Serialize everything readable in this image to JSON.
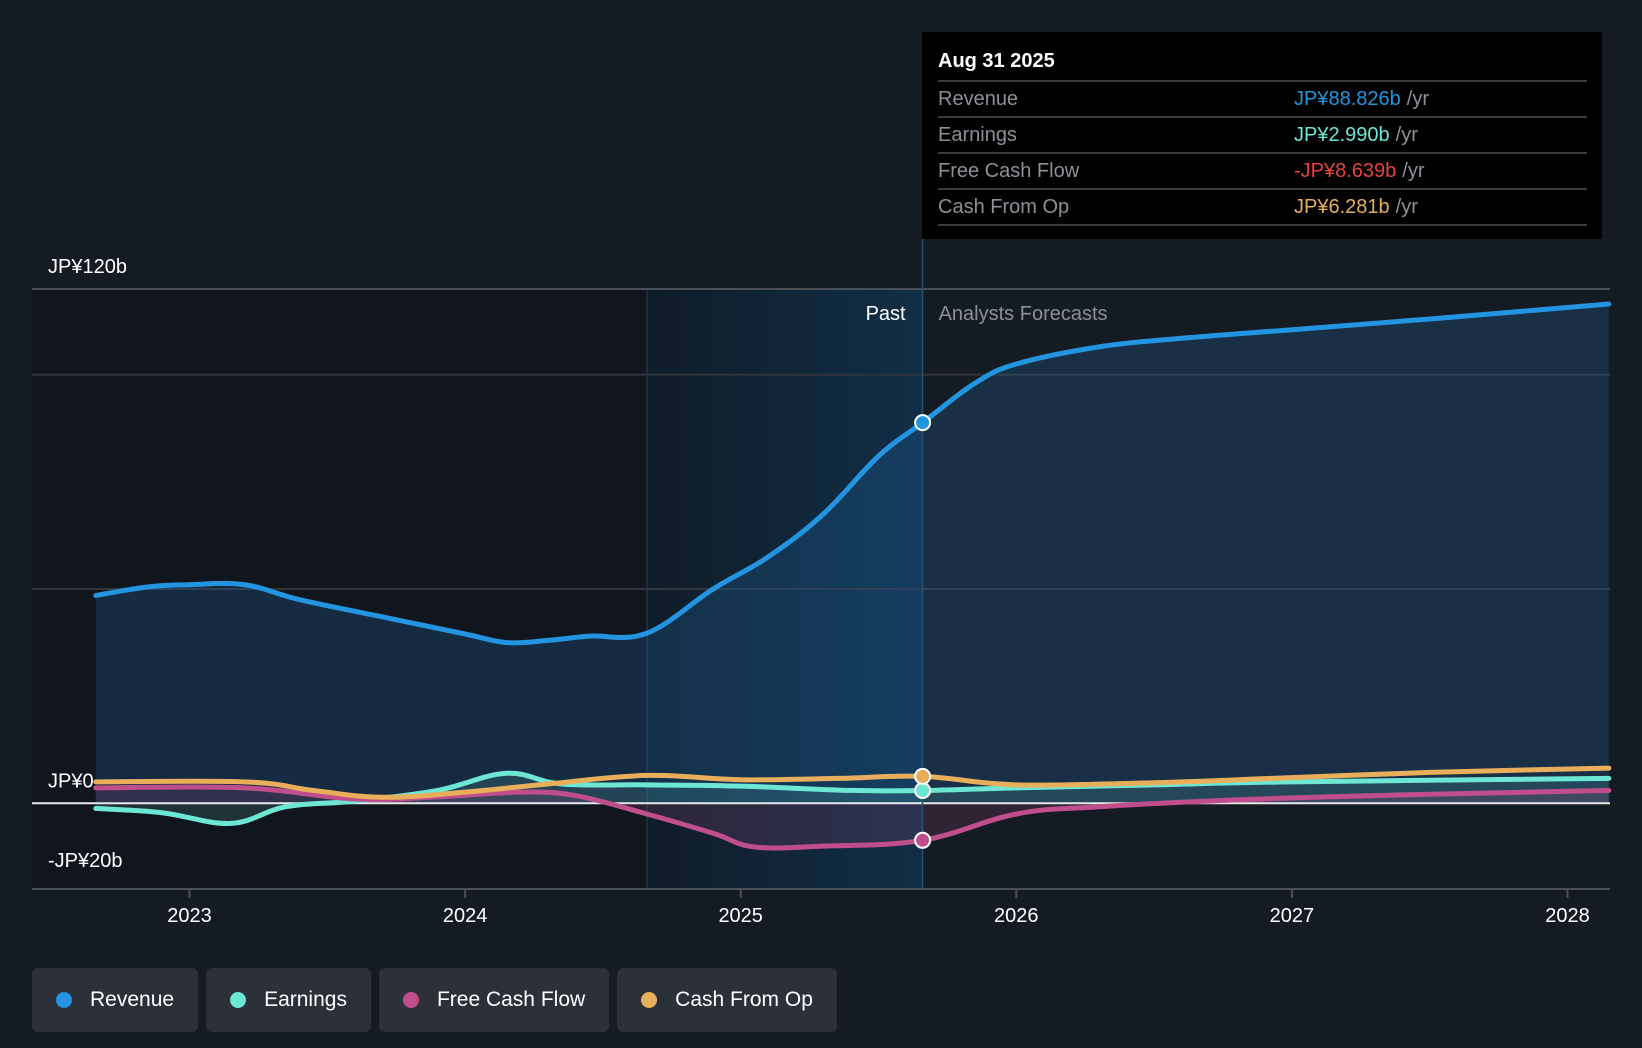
{
  "chart_data": {
    "type": "line",
    "title": "",
    "currency_prefix": "JP¥",
    "xlabel": "",
    "ylabel": "",
    "xlim": [
      2022.3,
      2028.15
    ],
    "ylim": [
      -20,
      120
    ],
    "y_ticks": [
      {
        "value": 120,
        "label": "JP¥120b",
        "show_label": true
      },
      {
        "value": 100,
        "label": "",
        "show_label": false
      },
      {
        "value": 50,
        "label": "",
        "show_label": false
      },
      {
        "value": 0,
        "label": "JP¥0",
        "show_label": true
      },
      {
        "value": -20,
        "label": "-JP¥20b",
        "show_label": true
      }
    ],
    "x_ticks": [
      {
        "value": 2023,
        "label": "2023"
      },
      {
        "value": 2024,
        "label": "2024"
      },
      {
        "value": 2025,
        "label": "2025"
      },
      {
        "value": 2026,
        "label": "2026"
      },
      {
        "value": 2027,
        "label": "2027"
      },
      {
        "value": 2028,
        "label": "2028"
      }
    ],
    "units": "JP¥ billions per year",
    "highlight_band": {
      "from": 2024.66,
      "to": 2025.66
    },
    "past_forecast_divider": 2025.66,
    "region_labels": {
      "past": "Past",
      "forecast": "Analysts Forecasts"
    },
    "series": [
      {
        "name": "Revenue",
        "color": "#2394e0",
        "fill": true,
        "points": [
          [
            2022.66,
            48.5
          ],
          [
            2022.85,
            50.5
          ],
          [
            2023.0,
            51.0
          ],
          [
            2023.2,
            51.0
          ],
          [
            2023.4,
            47.5
          ],
          [
            2023.7,
            43.5
          ],
          [
            2024.0,
            39.5
          ],
          [
            2024.15,
            37.5
          ],
          [
            2024.3,
            38.0
          ],
          [
            2024.45,
            39.0
          ],
          [
            2024.66,
            39.7
          ],
          [
            2024.9,
            50.0
          ],
          [
            2025.1,
            57.5
          ],
          [
            2025.3,
            67.5
          ],
          [
            2025.5,
            81.0
          ],
          [
            2025.66,
            88.826
          ],
          [
            2025.85,
            98.0
          ],
          [
            2026.0,
            102.5
          ],
          [
            2026.3,
            106.5
          ],
          [
            2026.6,
            108.5
          ],
          [
            2027.0,
            110.5
          ],
          [
            2027.5,
            113.0
          ],
          [
            2028.15,
            116.5
          ]
        ]
      },
      {
        "name": "Earnings",
        "color": "#6ee6d4",
        "fill": true,
        "points": [
          [
            2022.66,
            -1.2
          ],
          [
            2022.9,
            -2.2
          ],
          [
            2023.15,
            -4.7
          ],
          [
            2023.35,
            -0.8
          ],
          [
            2023.6,
            0.5
          ],
          [
            2023.9,
            3.0
          ],
          [
            2024.15,
            7.0
          ],
          [
            2024.35,
            4.5
          ],
          [
            2024.66,
            4.3
          ],
          [
            2025.0,
            4.0
          ],
          [
            2025.4,
            3.0
          ],
          [
            2025.66,
            2.99
          ],
          [
            2026.0,
            3.6
          ],
          [
            2026.5,
            4.3
          ],
          [
            2027.0,
            5.0
          ],
          [
            2028.15,
            5.8
          ]
        ]
      },
      {
        "name": "Free Cash Flow",
        "color": "#c04e8c",
        "fill": true,
        "points": [
          [
            2022.66,
            3.6
          ],
          [
            2023.2,
            3.6
          ],
          [
            2023.6,
            1.0
          ],
          [
            2023.9,
            1.5
          ],
          [
            2024.2,
            2.6
          ],
          [
            2024.4,
            1.8
          ],
          [
            2024.66,
            -2.5
          ],
          [
            2024.9,
            -7.0
          ],
          [
            2025.05,
            -10.2
          ],
          [
            2025.3,
            -10.0
          ],
          [
            2025.66,
            -8.639
          ],
          [
            2026.0,
            -2.5
          ],
          [
            2026.3,
            -0.8
          ],
          [
            2026.8,
            0.8
          ],
          [
            2027.3,
            1.8
          ],
          [
            2028.15,
            3.0
          ]
        ]
      },
      {
        "name": "Cash From Op",
        "color": "#e8ae5c",
        "fill": false,
        "points": [
          [
            2022.66,
            5.0
          ],
          [
            2023.2,
            5.0
          ],
          [
            2023.45,
            3.0
          ],
          [
            2023.7,
            1.4
          ],
          [
            2024.0,
            2.6
          ],
          [
            2024.3,
            4.5
          ],
          [
            2024.66,
            6.5
          ],
          [
            2025.0,
            5.5
          ],
          [
            2025.35,
            5.8
          ],
          [
            2025.66,
            6.281
          ],
          [
            2026.0,
            4.3
          ],
          [
            2026.5,
            4.8
          ],
          [
            2027.0,
            6.0
          ],
          [
            2027.5,
            7.2
          ],
          [
            2028.15,
            8.2
          ]
        ]
      }
    ]
  },
  "tooltip": {
    "date": "Aug 31 2025",
    "rows": [
      {
        "label": "Revenue",
        "value": "JP¥88.826b",
        "unit": "/yr",
        "color": "#2394e0"
      },
      {
        "label": "Earnings",
        "value": "JP¥2.990b",
        "unit": "/yr",
        "color": "#6ee6d4"
      },
      {
        "label": "Free Cash Flow",
        "value": "-JP¥8.639b",
        "unit": "/yr",
        "color": "#e8433e"
      },
      {
        "label": "Cash From Op",
        "value": "JP¥6.281b",
        "unit": "/yr",
        "color": "#e8ae5c"
      }
    ]
  },
  "legend": [
    {
      "label": "Revenue",
      "color": "#2394e0"
    },
    {
      "label": "Earnings",
      "color": "#6ee6d4"
    },
    {
      "label": "Free Cash Flow",
      "color": "#c04e8c"
    },
    {
      "label": "Cash From Op",
      "color": "#e8ae5c"
    }
  ]
}
